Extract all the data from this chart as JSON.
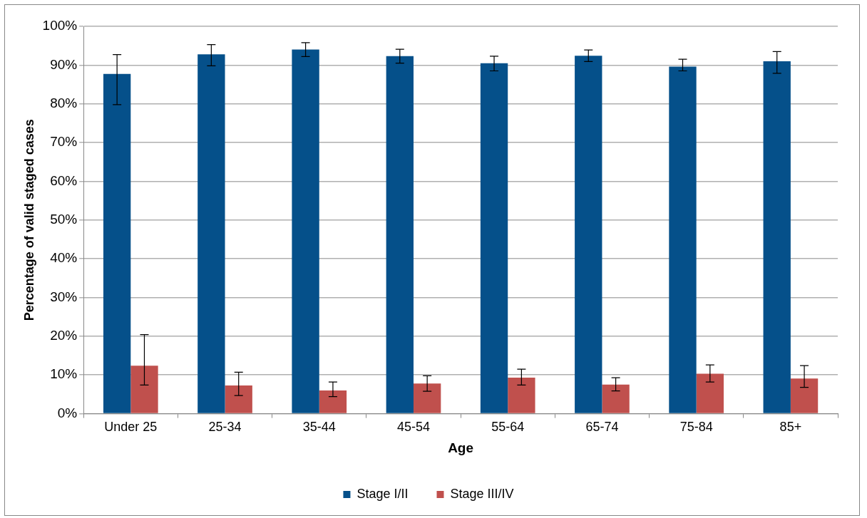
{
  "chart_data": {
    "type": "bar",
    "xlabel": "Age",
    "ylabel": "Percentage of valid staged cases",
    "categories": [
      "Under 25",
      "25-34",
      "35-44",
      "45-54",
      "55-64",
      "65-74",
      "75-84",
      "85+"
    ],
    "series": [
      {
        "name": "Stage I/II",
        "color": "#05508a",
        "values": [
          87.7,
          92.8,
          94.0,
          92.3,
          90.5,
          92.4,
          89.6,
          91.0
        ],
        "errors": [
          [
            79.8,
            92.7
          ],
          [
            89.8,
            95.3
          ],
          [
            92.2,
            95.8
          ],
          [
            90.5,
            94.1
          ],
          [
            88.5,
            92.3
          ],
          [
            90.9,
            93.9
          ],
          [
            88.5,
            91.5
          ],
          [
            87.9,
            93.5
          ]
        ]
      },
      {
        "name": "Stage III/IV",
        "color": "#c0504d",
        "values": [
          12.4,
          7.3,
          6.0,
          7.8,
          9.3,
          7.5,
          10.3,
          9.1
        ],
        "errors": [
          [
            7.4,
            20.4
          ],
          [
            4.7,
            10.7
          ],
          [
            4.4,
            8.2
          ],
          [
            5.8,
            9.8
          ],
          [
            7.4,
            11.5
          ],
          [
            5.9,
            9.3
          ],
          [
            8.2,
            12.6
          ],
          [
            6.8,
            12.4
          ]
        ]
      }
    ],
    "ylim": [
      0,
      100
    ],
    "yticks": [
      {
        "value": 0,
        "label": "0%"
      },
      {
        "value": 10,
        "label": "10%"
      },
      {
        "value": 20,
        "label": "20%"
      },
      {
        "value": 30,
        "label": "30%"
      },
      {
        "value": 40,
        "label": "40%"
      },
      {
        "value": 50,
        "label": "50%"
      },
      {
        "value": 60,
        "label": "60%"
      },
      {
        "value": 70,
        "label": "70%"
      },
      {
        "value": 80,
        "label": "80%"
      },
      {
        "value": 90,
        "label": "90%"
      },
      {
        "value": 100,
        "label": "100%"
      }
    ],
    "grid": "y",
    "legend": "bottom"
  }
}
